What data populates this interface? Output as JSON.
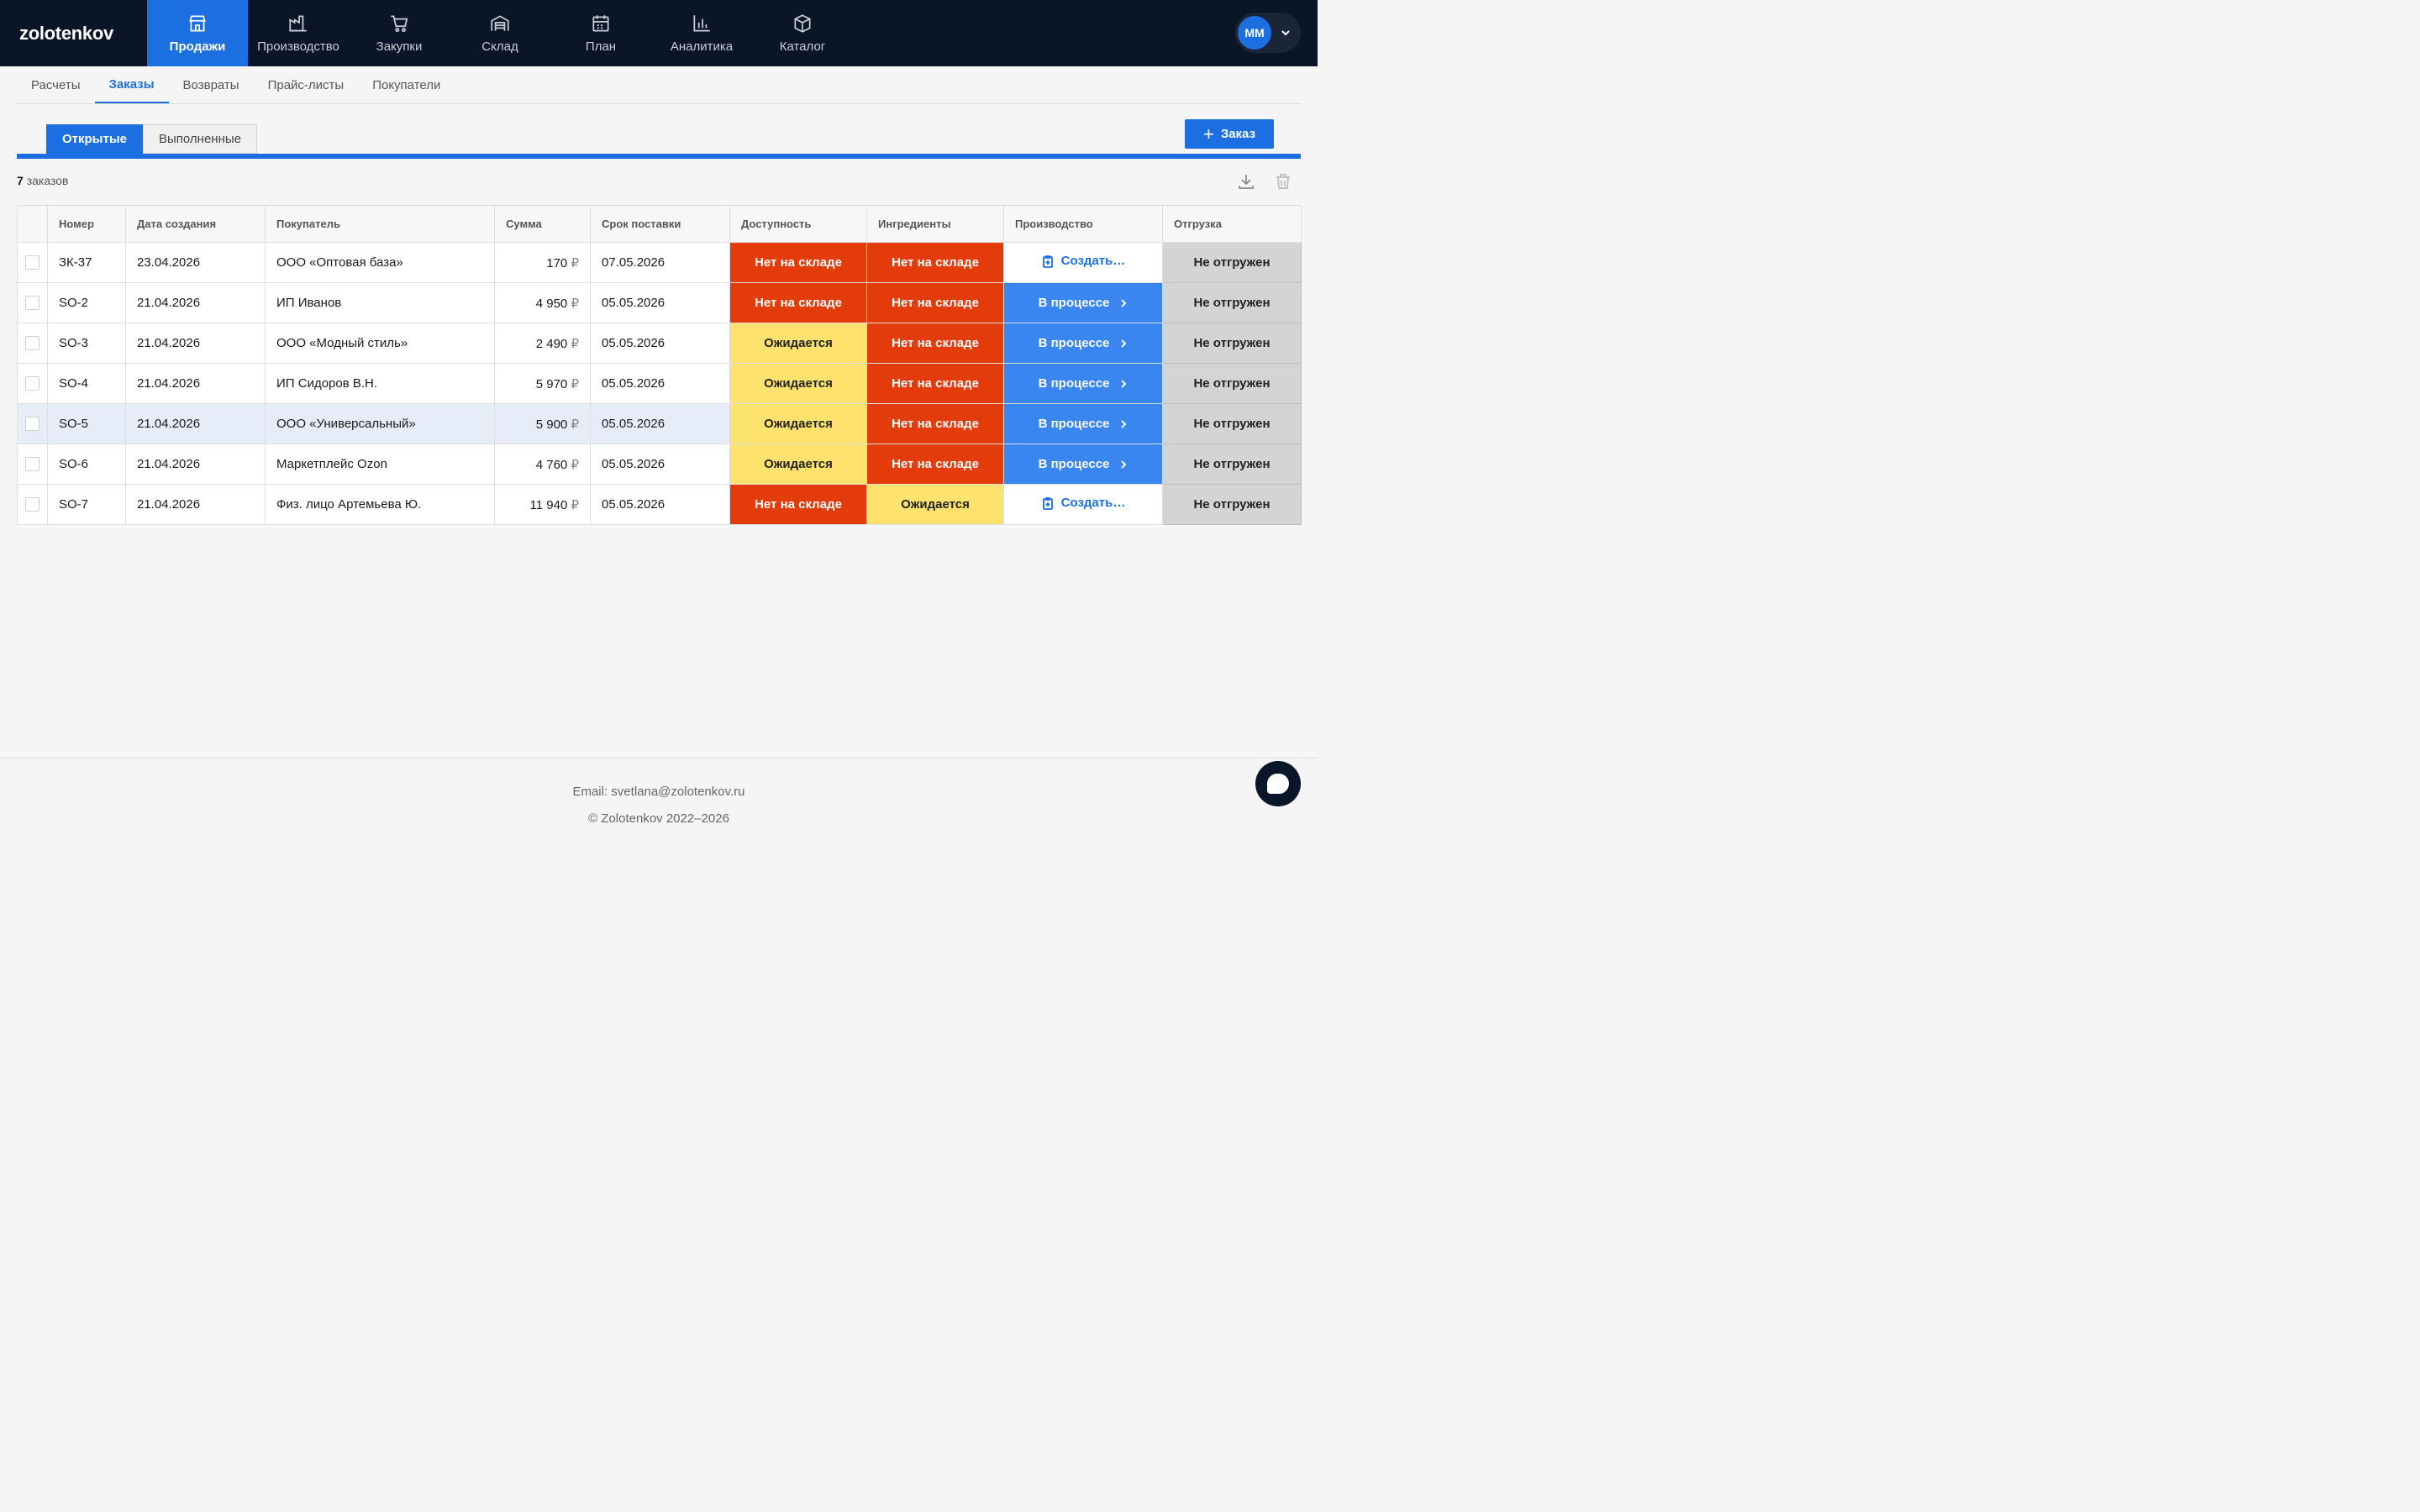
{
  "brand": {
    "logo": "zolotenkov",
    "accent": "#1b6fe0",
    "nav_bg": "#0a1628"
  },
  "nav": [
    {
      "label": "Продажи",
      "icon": "store-icon",
      "active": true
    },
    {
      "label": "Производство",
      "icon": "factory-icon"
    },
    {
      "label": "Закупки",
      "icon": "cart-icon"
    },
    {
      "label": "Склад",
      "icon": "warehouse-icon"
    },
    {
      "label": "План",
      "icon": "calendar-icon"
    },
    {
      "label": "Аналитика",
      "icon": "bar-chart-icon"
    },
    {
      "label": "Каталог",
      "icon": "box-icon"
    }
  ],
  "user": {
    "initials": "ММ"
  },
  "subtabs": [
    "Расчеты",
    "Заказы",
    "Возвраты",
    "Прайс-листы",
    "Покупатели"
  ],
  "subtab_active": "Заказы",
  "status_tabs": {
    "open": "Открытые",
    "done": "Выполненные"
  },
  "add_button": "Заказ",
  "count": {
    "number": "7",
    "label": "заказов"
  },
  "table": {
    "headers": [
      "Номер",
      "Дата создания",
      "Покупатель",
      "Сумма",
      "Срок поставки",
      "Доступность",
      "Ингредиенты",
      "Производство",
      "Отгрузка"
    ],
    "currency": "₽",
    "rows": [
      {
        "number": "ЗК-37",
        "created": "23.04.2026",
        "buyer": "ООО «Оптовая база»",
        "sum": "170",
        "deadline": "07.05.2026",
        "availability": "Нет на складе",
        "ingredients": "Нет на складе",
        "production": "Создать…",
        "shipping": "Не отгружен"
      },
      {
        "number": "SO-2",
        "created": "21.04.2026",
        "buyer": "ИП Иванов",
        "sum": "4 950",
        "deadline": "05.05.2026",
        "availability": "Нет на складе",
        "ingredients": "Нет на складе",
        "production": "В процессе",
        "shipping": "Не отгружен"
      },
      {
        "number": "SO-3",
        "created": "21.04.2026",
        "buyer": "ООО «Модный стиль»",
        "sum": "2 490",
        "deadline": "05.05.2026",
        "availability": "Ожидается",
        "ingredients": "Нет на складе",
        "production": "В процессе",
        "shipping": "Не отгружен"
      },
      {
        "number": "SO-4",
        "created": "21.04.2026",
        "buyer": "ИП Сидоров В.Н.",
        "sum": "5 970",
        "deadline": "05.05.2026",
        "availability": "Ожидается",
        "ingredients": "Нет на складе",
        "production": "В процессе",
        "shipping": "Не отгружен"
      },
      {
        "number": "SO-5",
        "created": "21.04.2026",
        "buyer": "ООО «Универсальный»",
        "sum": "5 900",
        "deadline": "05.05.2026",
        "availability": "Ожидается",
        "ingredients": "Нет на складе",
        "production": "В процессе",
        "shipping": "Не отгружен"
      },
      {
        "number": "SO-6",
        "created": "21.04.2026",
        "buyer": "Маркетплейс Ozon",
        "sum": "4 760",
        "deadline": "05.05.2026",
        "availability": "Ожидается",
        "ingredients": "Нет на складе",
        "production": "В процессе",
        "shipping": "Не отгружен"
      },
      {
        "number": "SO-7",
        "created": "21.04.2026",
        "buyer": "Физ. лицо Артемьева Ю.",
        "sum": "11 940",
        "deadline": "05.05.2026",
        "availability": "Нет на складе",
        "ingredients": "Ожидается",
        "production": "Создать…",
        "shipping": "Не отгружен"
      }
    ]
  },
  "footer": {
    "email": "Email: svetlana@zolotenkov.ru",
    "copyright": "© Zolotenkov 2022–2026"
  }
}
